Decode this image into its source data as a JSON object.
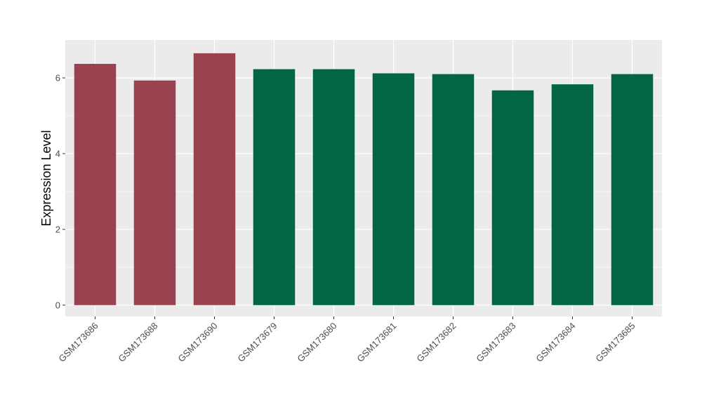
{
  "chart_data": {
    "type": "bar",
    "title": "",
    "xlabel": "",
    "ylabel": "Expression Level",
    "ylim": [
      -0.3,
      7.0
    ],
    "yticks": [
      0,
      2,
      4,
      6
    ],
    "grid": true,
    "legend": "none",
    "categories": [
      "GSM173686",
      "GSM173688",
      "GSM173690",
      "GSM173679",
      "GSM173680",
      "GSM173681",
      "GSM173682",
      "GSM173683",
      "GSM173684",
      "GSM173685"
    ],
    "values": [
      6.37,
      5.93,
      6.65,
      6.23,
      6.23,
      6.12,
      6.1,
      5.67,
      5.83,
      6.1
    ],
    "groups": [
      "a",
      "a",
      "a",
      "b",
      "b",
      "b",
      "b",
      "b",
      "b",
      "b"
    ],
    "group_colors": {
      "a": "#9a4350",
      "b": "#026642"
    },
    "panel_background": "#ebebeb",
    "grid_color": "#ffffff"
  }
}
